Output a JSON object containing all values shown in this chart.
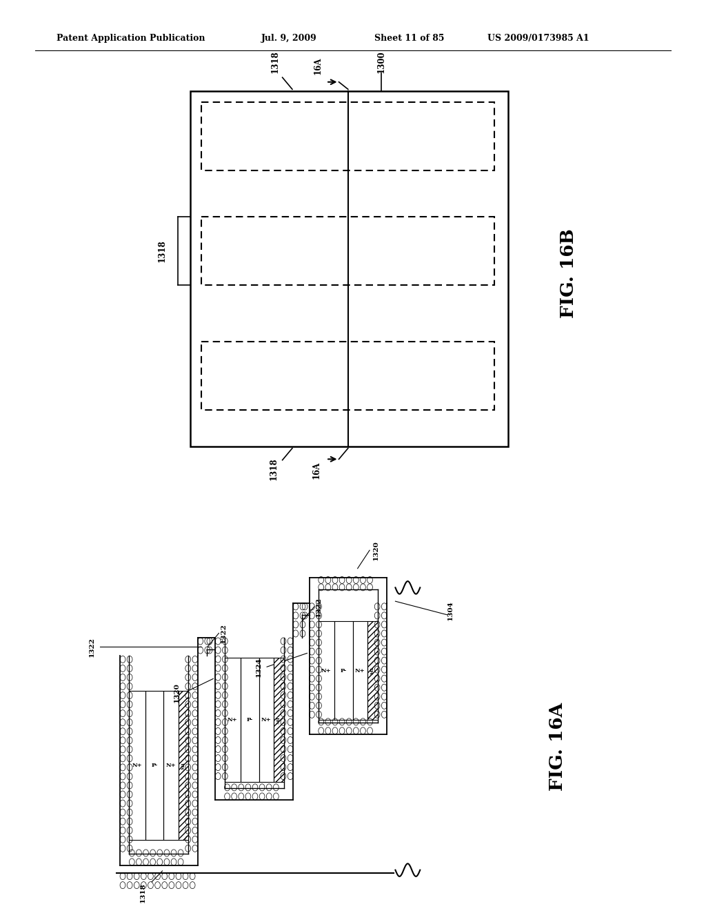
{
  "background_color": "#ffffff",
  "header_text": "Patent Application Publication",
  "header_date": "Jul. 9, 2009",
  "header_sheet": "Sheet 11 of 85",
  "header_patent": "US 2009/0173985 A1"
}
